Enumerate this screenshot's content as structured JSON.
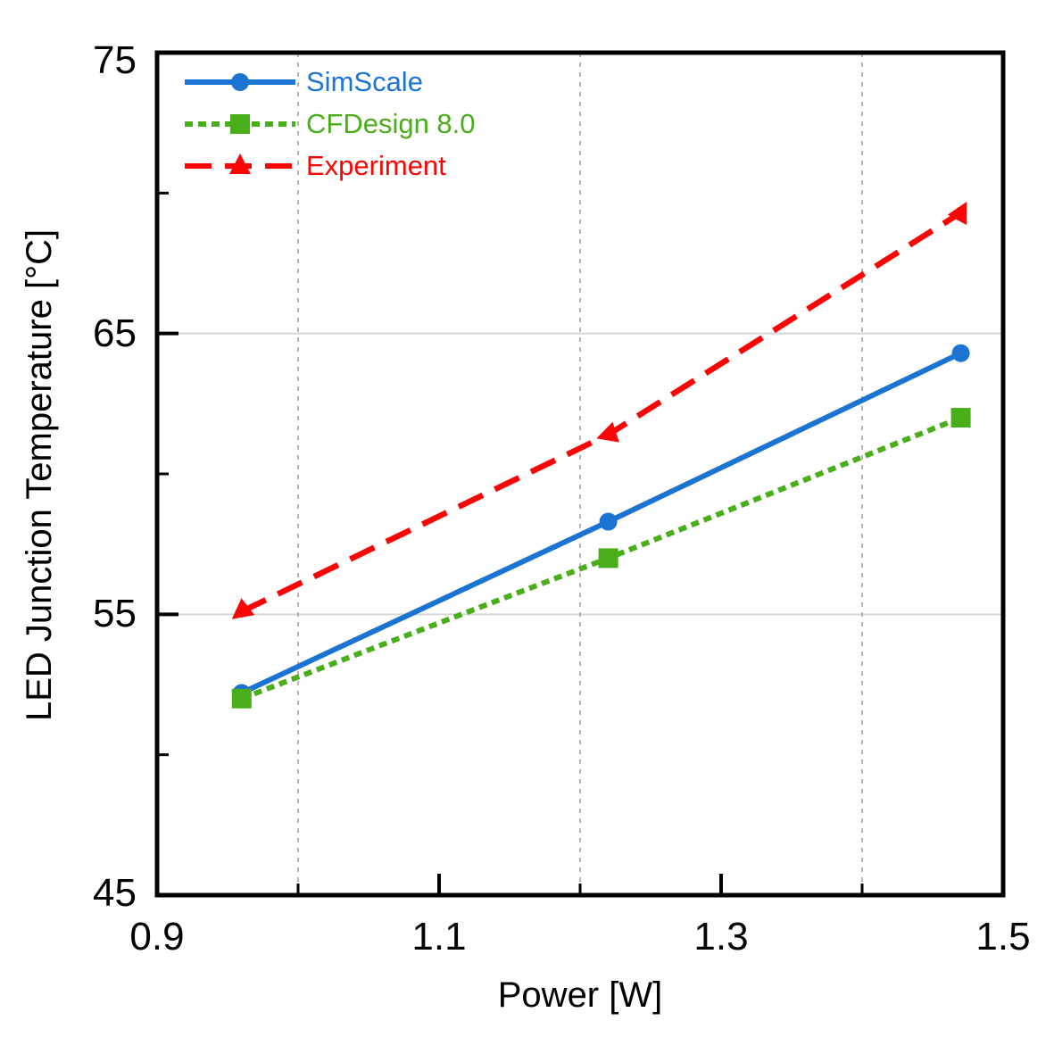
{
  "chart_data": {
    "type": "line",
    "title": "",
    "xlabel": "Power [W]",
    "ylabel": "LED Junction Temperature [°C]",
    "xlim": [
      0.9,
      1.5
    ],
    "ylim": [
      45,
      75
    ],
    "x_major_ticks": [
      0.9,
      1.1,
      1.3,
      1.5
    ],
    "x_tick_labels": [
      "0.9",
      "1.1",
      "1.3",
      "1.5"
    ],
    "x_minor_ticks": [
      1.0,
      1.2,
      1.4
    ],
    "y_major_ticks": [
      75,
      65,
      55,
      45
    ],
    "y_tick_labels": [
      "75",
      "65",
      "55",
      "45"
    ],
    "y_minor_ticks": [
      70,
      60,
      50
    ],
    "grid": {
      "horizontal_solid_at": [
        65,
        55
      ],
      "vertical_dashed_at": [
        1.0,
        1.2,
        1.4
      ],
      "h_grid_color": "#d6d6d6",
      "v_grid_color": "#acacac"
    },
    "legend_position": "top-left",
    "axis_color": "#000000",
    "x": [
      0.96,
      1.22,
      1.47
    ],
    "series": [
      {
        "name": "SimScale",
        "color": "#1b74d1",
        "line": "solid",
        "marker": "circle",
        "values": [
          52.2,
          58.3,
          64.3
        ]
      },
      {
        "name": "CFDesign 8.0",
        "color": "#4aad1a",
        "line": "dotted",
        "marker": "square",
        "values": [
          52.0,
          57.0,
          62.0
        ]
      },
      {
        "name": "Experiment",
        "color": "#fa0505",
        "line": "dashed",
        "marker": "triangle-up",
        "marker_rotations": [
          232,
          252,
          28
        ],
        "values": [
          55.1,
          61.4,
          69.3
        ]
      }
    ]
  }
}
